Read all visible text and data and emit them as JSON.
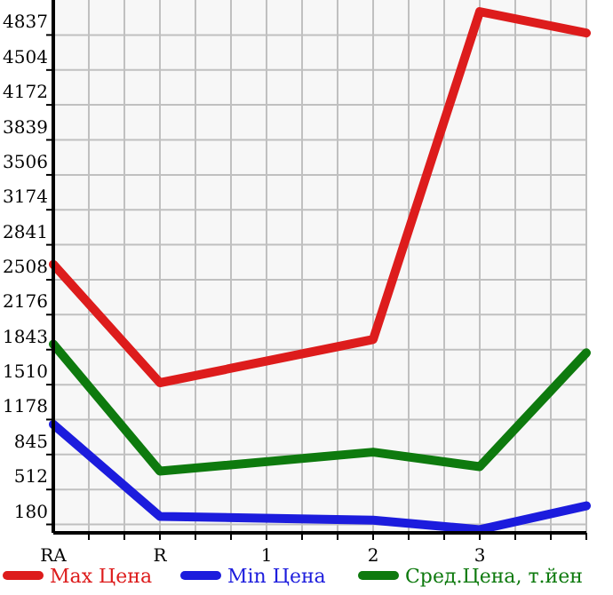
{
  "chart_data": {
    "type": "line",
    "categories": [
      "RA",
      "R",
      "1",
      "2",
      "3",
      null
    ],
    "series": [
      {
        "name": "Max Цена",
        "color": "#dd1c1c",
        "values": [
          2655,
          1528,
          null,
          1940,
          5059,
          4856
        ]
      },
      {
        "name": "Min Цена",
        "color": "#1c1cdd",
        "values": [
          1132,
          257,
          null,
          220,
          130,
          357
        ]
      },
      {
        "name": "Сред.Цена, т.йен",
        "color": "#0e7a0e",
        "values": [
          1896,
          687,
          null,
          868,
          730,
          1813
        ]
      }
    ],
    "ylim": [
      100,
      5170
    ],
    "yticks": [
      180,
      512,
      845,
      1178,
      1510,
      1843,
      2176,
      2508,
      2841,
      3174,
      3506,
      3839,
      4172,
      4504,
      4837
    ],
    "grid": true,
    "legend": "bottom",
    "marker": "none",
    "line_style": "solid"
  }
}
